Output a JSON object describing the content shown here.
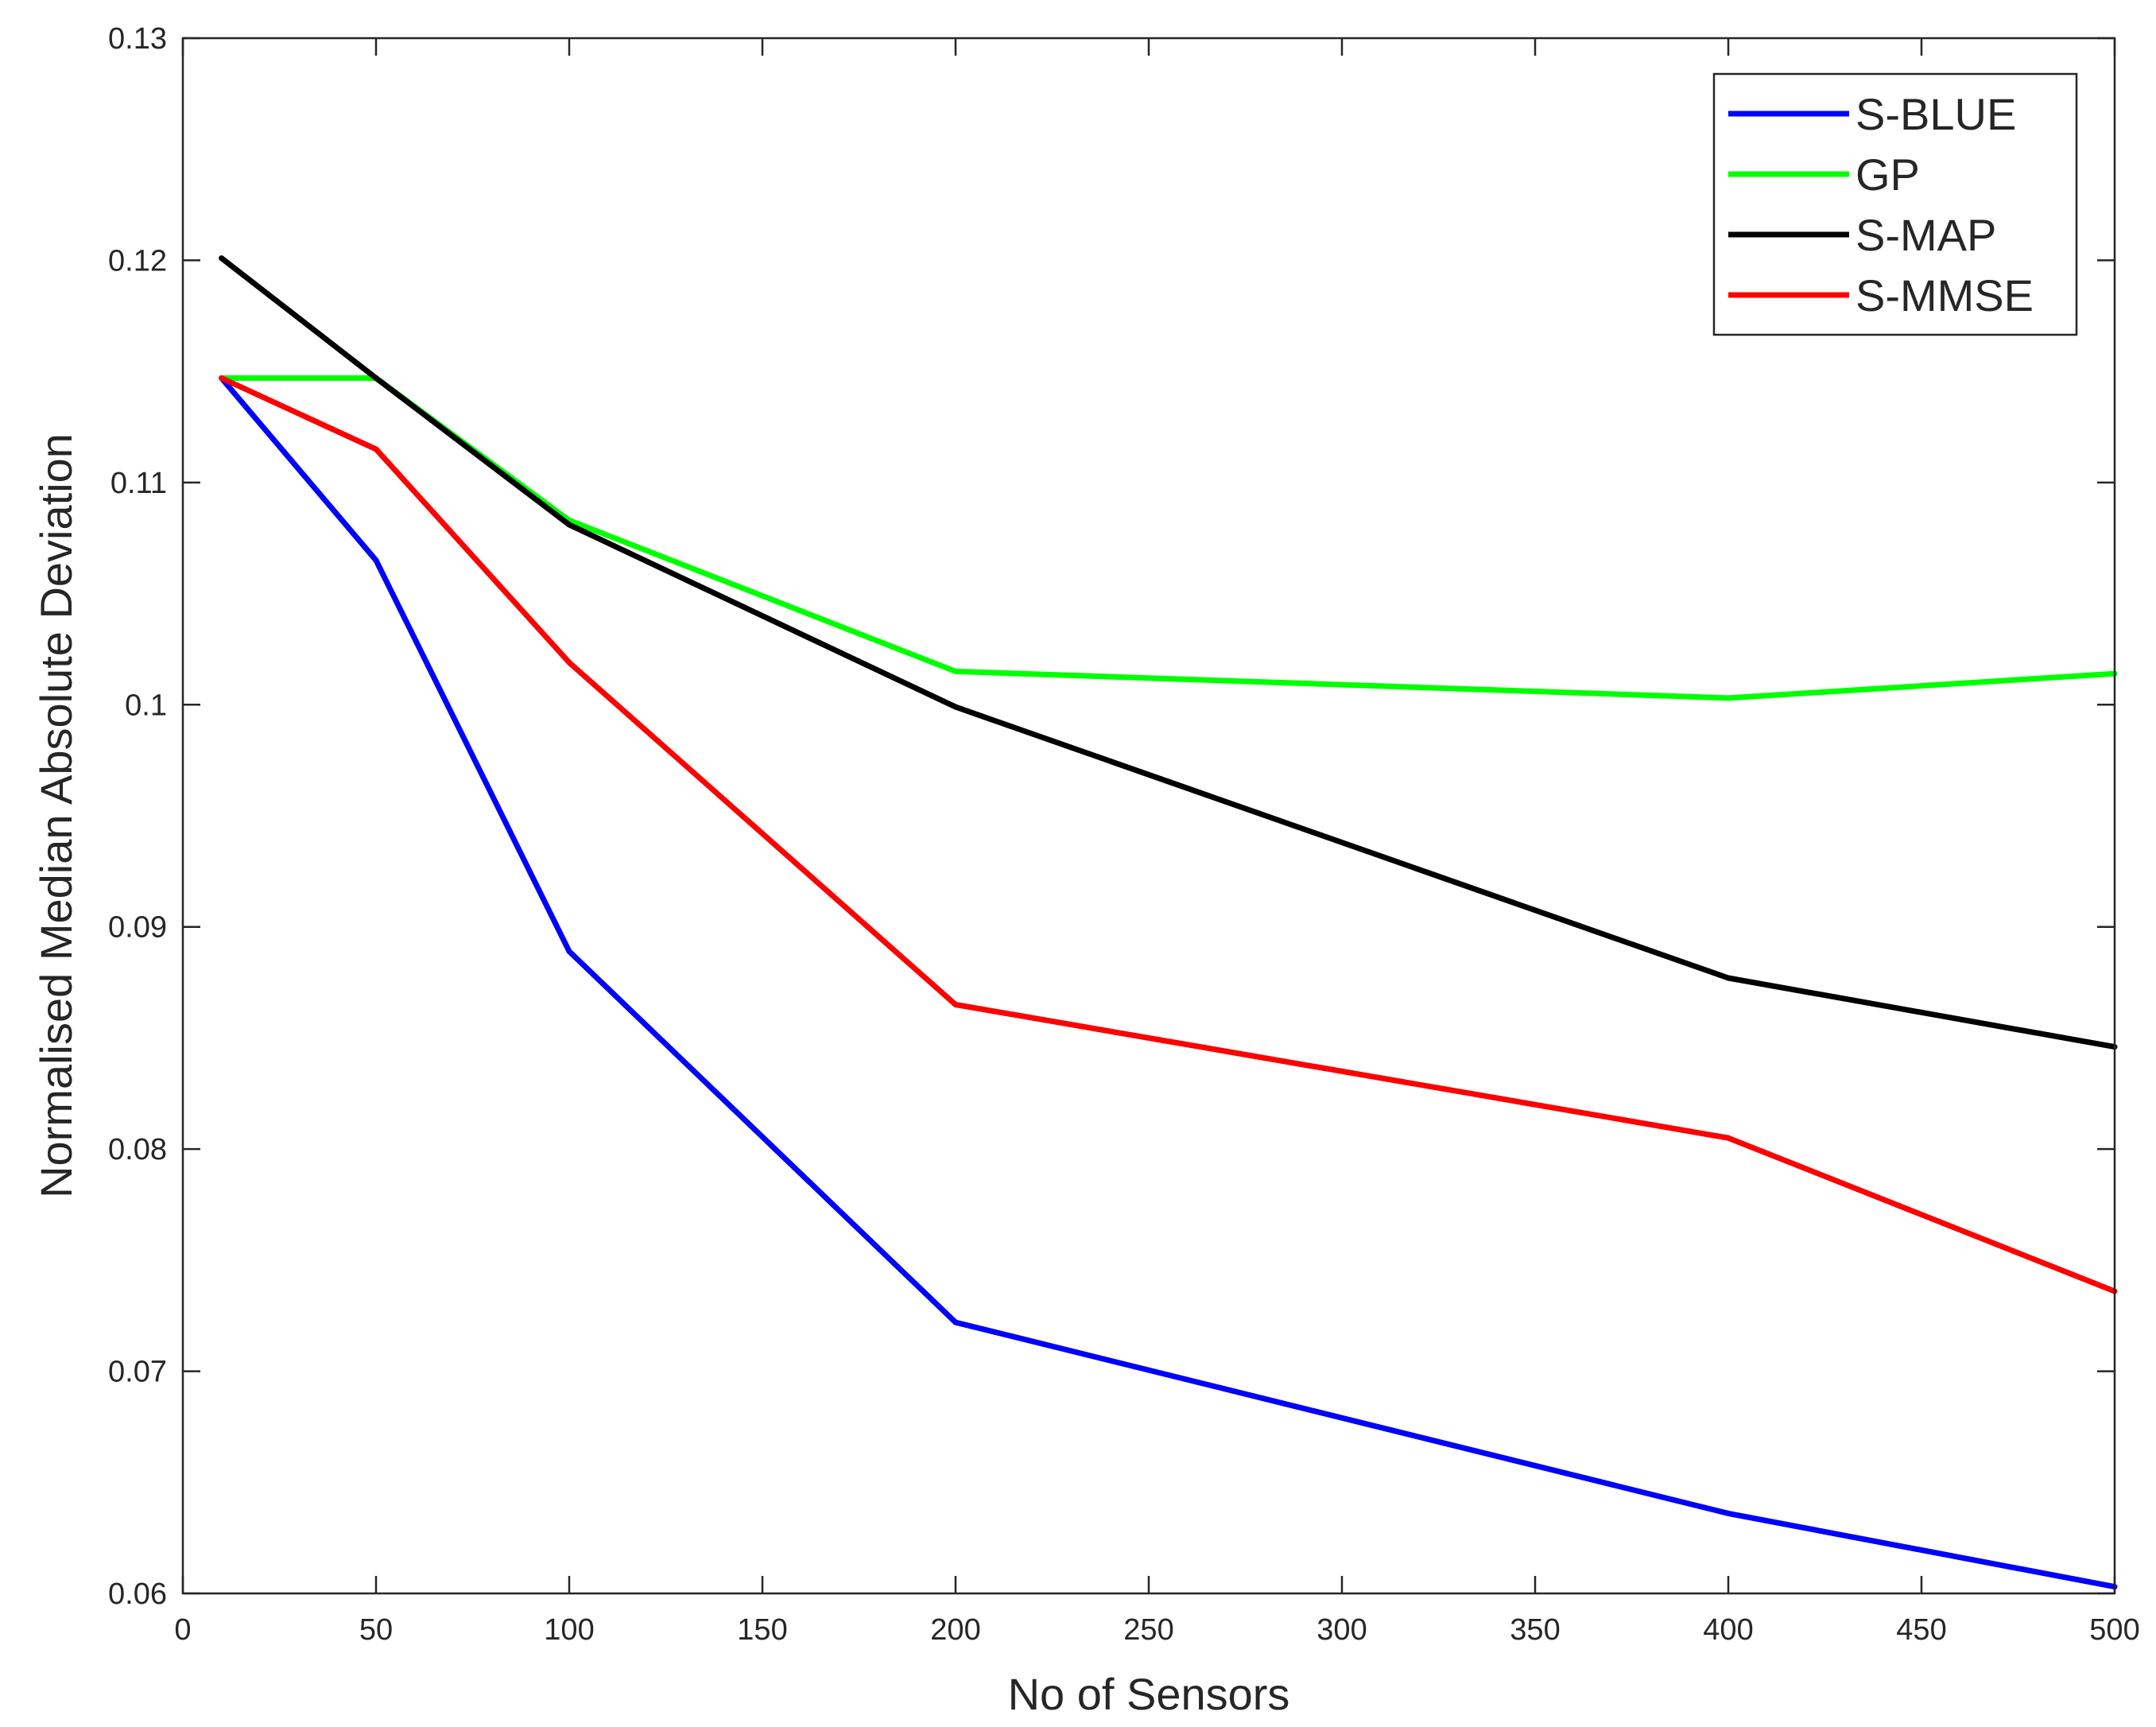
{
  "chart_data": {
    "type": "line",
    "title": "",
    "xlabel": "No of Sensors",
    "ylabel": "Normalised Median Absolute Deviation",
    "xlim": [
      0,
      500
    ],
    "ylim": [
      0.06,
      0.13
    ],
    "xticks": [
      0,
      50,
      100,
      150,
      200,
      250,
      300,
      350,
      400,
      450,
      500
    ],
    "xtick_labels": [
      "0",
      "50",
      "100",
      "150",
      "200",
      "250",
      "300",
      "350",
      "400",
      "450",
      "500"
    ],
    "yticks": [
      0.06,
      0.07,
      0.08,
      0.09,
      0.1,
      0.11,
      0.12,
      0.13
    ],
    "ytick_labels": [
      "0.06",
      "0.07",
      "0.08",
      "0.09",
      "0.1",
      "0.11",
      "0.12",
      "0.13"
    ],
    "grid": false,
    "legend_position": "top-right",
    "x": [
      10,
      50,
      100,
      200,
      400,
      500
    ],
    "series": [
      {
        "name": "S-BLUE",
        "color": "#0000ff",
        "values": [
          0.1147,
          0.1065,
          0.0889,
          0.0722,
          0.0636,
          0.0603
        ]
      },
      {
        "name": "GP",
        "color": "#00ff00",
        "values": [
          0.1147,
          0.1147,
          0.1083,
          0.1015,
          0.1003,
          0.1014
        ]
      },
      {
        "name": "S-MAP",
        "color": "#000000",
        "values": [
          0.1201,
          0.1147,
          0.1081,
          0.0999,
          0.0877,
          0.0846
        ]
      },
      {
        "name": "S-MMSE",
        "color": "#ff0000",
        "values": [
          0.1147,
          0.1115,
          0.1019,
          0.0865,
          0.0805,
          0.0736
        ]
      }
    ]
  }
}
